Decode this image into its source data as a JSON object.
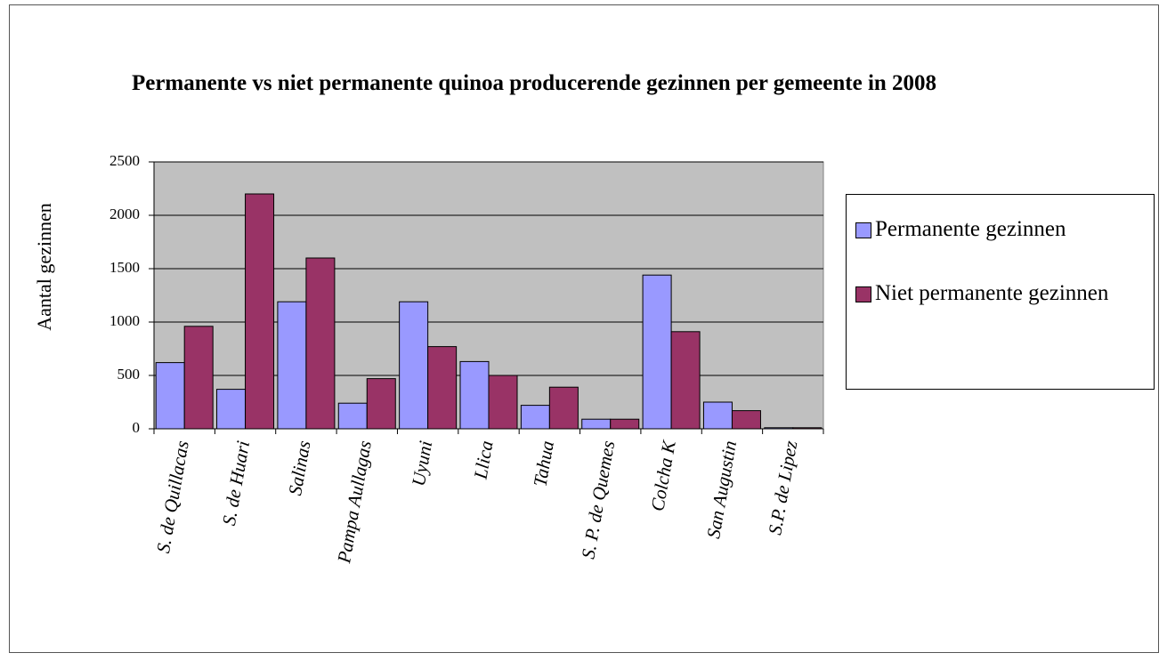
{
  "chart_data": {
    "type": "bar",
    "title": "Permanente vs niet permanente quinoa producerende gezinnen per gemeente in 2008",
    "y_label": "Aantal gezinnen",
    "categories": [
      "S. de Quillacas",
      "S. de Huari",
      "Salinas",
      "Pampa Aullagas",
      "Uyuni",
      "Llica",
      "Tahua",
      "S. P. de Quemes",
      "Colcha K",
      "San Augustin",
      "S.P. de Lipez"
    ],
    "series": [
      {
        "name": "Permanente gezinnen",
        "color": "#9999ff",
        "values": [
          620,
          370,
          1190,
          240,
          1190,
          630,
          220,
          90,
          1440,
          250,
          10
        ]
      },
      {
        "name": "Niet permanente gezinnen",
        "color": "#993366",
        "values": [
          960,
          2200,
          1600,
          470,
          770,
          500,
          390,
          90,
          910,
          170,
          10
        ]
      }
    ],
    "ylim": [
      0,
      2500
    ],
    "yticks": [
      0,
      500,
      1000,
      1500,
      2000,
      2500
    ],
    "grid": true,
    "legend": "right"
  }
}
